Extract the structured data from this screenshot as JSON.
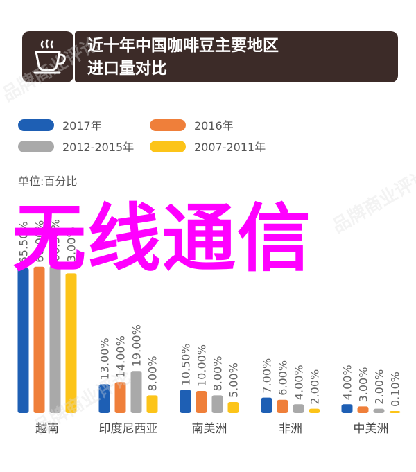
{
  "header": {
    "title_line1": "近十年中国咖啡豆主要地区",
    "title_line2": "进口量对比",
    "icon": "coffee-cup-icon",
    "bg_color": "#3c2b28"
  },
  "watermark": "品牌商业评论",
  "unit_label": "单位:百分比",
  "overlay_text": "无线通信",
  "chart_data": {
    "type": "bar",
    "categories": [
      "越南",
      "印度尼西亚",
      "南美洲",
      "非洲",
      "中美洲"
    ],
    "series": [
      {
        "name": "2017年",
        "color": "#1e5fb4",
        "values": [
          65.5,
          13.0,
          10.5,
          7.0,
          4.0
        ],
        "labels": [
          "65.50%",
          "13.00%",
          "10.50%",
          "7.00%",
          "4.00%"
        ]
      },
      {
        "name": "2016年",
        "color": "#ef7f3a",
        "values": [
          66.0,
          14.0,
          10.0,
          6.0,
          3.0
        ],
        "labels": [
          "66.00%",
          "14.00%",
          "10.00%",
          "6.00%",
          "3.00%"
        ]
      },
      {
        "name": "2012-2015年",
        "color": "#a9a9a9",
        "values": [
          66.5,
          19.0,
          8.0,
          4.0,
          2.0
        ],
        "labels": [
          "66.50%",
          "19.00%",
          "8.00%",
          "4.00%",
          "2.00%"
        ]
      },
      {
        "name": "2007-2011年",
        "color": "#fcc419",
        "values": [
          63.0,
          8.0,
          5.0,
          2.0,
          0.1
        ],
        "labels": [
          "63.00%",
          "8.00%",
          "5.00%",
          "2.00%",
          "0.10%"
        ]
      }
    ],
    "legend_position": "top-left",
    "grid": false
  }
}
